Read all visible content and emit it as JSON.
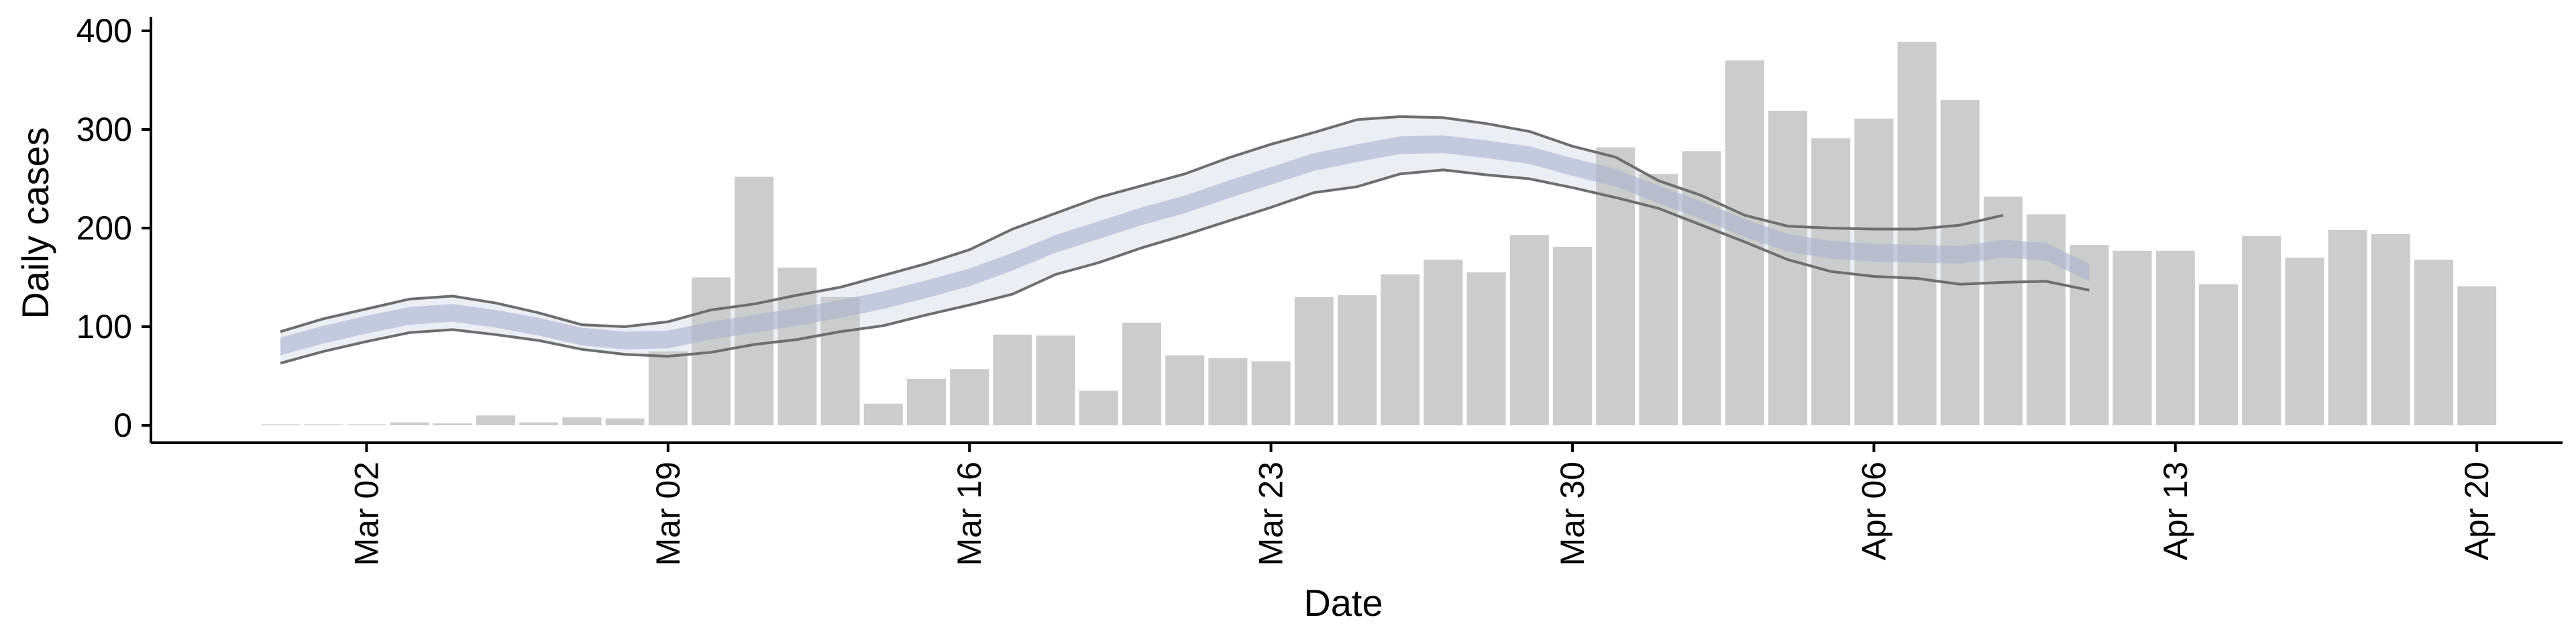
{
  "chart_data": {
    "type": "bar",
    "xlabel": "Date",
    "ylabel": "Daily cases",
    "ylim": [
      -15,
      415
    ],
    "yticks": [
      0,
      100,
      200,
      300,
      400
    ],
    "x_dates": [
      "Feb 29",
      "Mar 01",
      "Mar 02",
      "Mar 03",
      "Mar 04",
      "Mar 05",
      "Mar 06",
      "Mar 07",
      "Mar 08",
      "Mar 09",
      "Mar 10",
      "Mar 11",
      "Mar 12",
      "Mar 13",
      "Mar 14",
      "Mar 15",
      "Mar 16",
      "Mar 17",
      "Mar 18",
      "Mar 19",
      "Mar 20",
      "Mar 21",
      "Mar 22",
      "Mar 23",
      "Mar 24",
      "Mar 25",
      "Mar 26",
      "Mar 27",
      "Mar 28",
      "Mar 29",
      "Mar 30",
      "Mar 31",
      "Apr 01",
      "Apr 02",
      "Apr 03",
      "Apr 04",
      "Apr 05",
      "Apr 06",
      "Apr 07",
      "Apr 08",
      "Apr 09",
      "Apr 10",
      "Apr 11",
      "Apr 12",
      "Apr 13",
      "Apr 14",
      "Apr 15",
      "Apr 16",
      "Apr 17",
      "Apr 18",
      "Apr 19",
      "Apr 20"
    ],
    "xtick_labels": [
      "Mar 02",
      "Mar 09",
      "Mar 16",
      "Mar 23",
      "Mar 30",
      "Apr 06",
      "Apr 13",
      "Apr 20"
    ],
    "series": [
      {
        "type": "bar",
        "color": "#cccccc",
        "values": [
          1,
          1,
          1,
          3,
          2,
          10,
          3,
          8,
          7,
          75,
          150,
          252,
          160,
          130,
          22,
          47,
          57,
          92,
          91,
          35,
          104,
          71,
          68,
          65,
          130,
          132,
          153,
          168,
          155,
          193,
          181,
          282,
          255,
          278,
          370,
          319,
          291,
          311,
          389,
          330,
          232,
          214,
          183,
          177,
          177,
          143,
          192,
          170,
          198,
          194,
          168,
          141
        ]
      },
      {
        "type": "line",
        "color": "#6e6e6e",
        "values": [
          95,
          108,
          118,
          128,
          131,
          124,
          114,
          102,
          100,
          105,
          117,
          123,
          132,
          140,
          152,
          164,
          178,
          199,
          215,
          231,
          243,
          255,
          271,
          285,
          297,
          310,
          313,
          312,
          306,
          298,
          283,
          272,
          248,
          233,
          213,
          202,
          200,
          199,
          199,
          203,
          213,
          null,
          null,
          null,
          null,
          null,
          null,
          null,
          null,
          null,
          null,
          null
        ]
      },
      {
        "type": "line",
        "color": "#6e6e6e",
        "values": [
          63,
          75,
          85,
          94,
          97,
          92,
          86,
          77,
          72,
          70,
          74,
          82,
          87,
          95,
          101,
          112,
          122,
          133,
          153,
          165,
          180,
          193,
          207,
          221,
          236,
          242,
          255,
          259,
          254,
          250,
          241,
          231,
          220,
          203,
          186,
          168,
          156,
          151,
          149,
          143,
          145,
          146,
          137,
          null,
          null,
          null,
          null,
          null,
          null,
          null,
          null,
          null
        ]
      },
      {
        "type": "area",
        "color": "#aab2cf",
        "values": [
          80,
          92,
          102,
          111,
          114,
          108,
          100,
          90,
          86,
          87,
          96,
          103,
          110,
          118,
          127,
          138,
          150,
          166,
          184,
          198,
          212,
          224,
          239,
          253,
          267,
          276,
          284,
          285,
          280,
          274,
          262,
          251,
          234,
          218,
          200,
          185,
          178,
          175,
          174,
          173,
          179,
          176,
          155,
          null,
          null,
          null,
          null,
          null,
          null,
          null,
          null,
          null
        ]
      }
    ]
  }
}
